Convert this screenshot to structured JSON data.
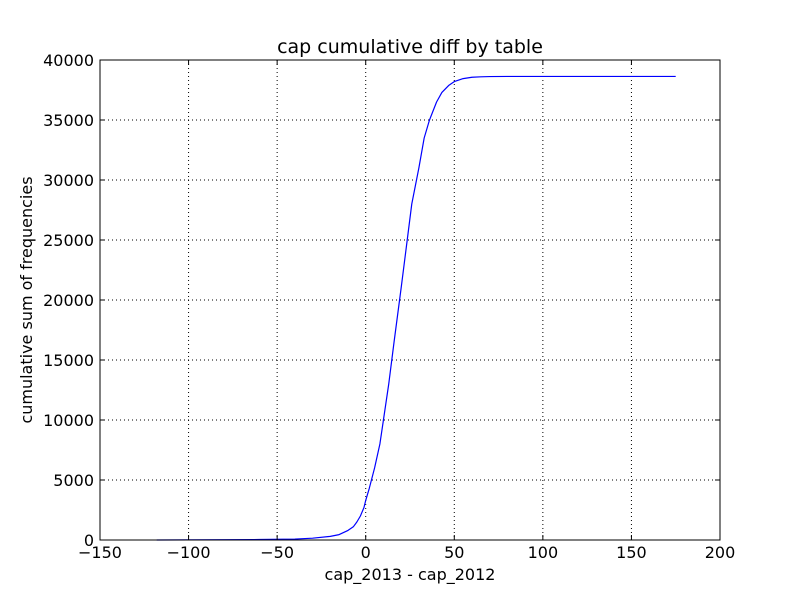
{
  "chart_data": {
    "type": "line",
    "title": "cap cumulative diff by table",
    "xlabel": "cap_2013 - cap_2012",
    "ylabel": "cumulative sum of frequencies",
    "xlim": [
      -150,
      200
    ],
    "ylim": [
      0,
      40000
    ],
    "xticks": [
      -150,
      -100,
      -50,
      0,
      50,
      100,
      150,
      200
    ],
    "xtick_labels": [
      "−150",
      "−100",
      "−50",
      "0",
      "50",
      "100",
      "150",
      "200"
    ],
    "yticks": [
      0,
      5000,
      10000,
      15000,
      20000,
      25000,
      30000,
      35000,
      40000
    ],
    "ytick_labels": [
      "0",
      "5000",
      "10000",
      "15000",
      "20000",
      "25000",
      "30000",
      "35000",
      "40000"
    ],
    "grid": true,
    "series": [
      {
        "color": "#0000ff",
        "x": [
          -118,
          -100,
          -80,
          -60,
          -40,
          -30,
          -20,
          -15,
          -10,
          -7,
          -5,
          -3,
          -1,
          0,
          2,
          5,
          8,
          10,
          13,
          16,
          20,
          23,
          26,
          30,
          33,
          36,
          40,
          43,
          47,
          50,
          55,
          60,
          65,
          70,
          80,
          100,
          130,
          150,
          175
        ],
        "y": [
          0,
          10,
          20,
          40,
          80,
          150,
          300,
          450,
          800,
          1100,
          1500,
          2000,
          2700,
          3300,
          4300,
          6000,
          8000,
          10000,
          13000,
          16500,
          21000,
          24500,
          28000,
          31000,
          33500,
          35000,
          36500,
          37300,
          37900,
          38200,
          38450,
          38560,
          38600,
          38620,
          38630,
          38630,
          38630,
          38630,
          38630
        ]
      }
    ]
  }
}
